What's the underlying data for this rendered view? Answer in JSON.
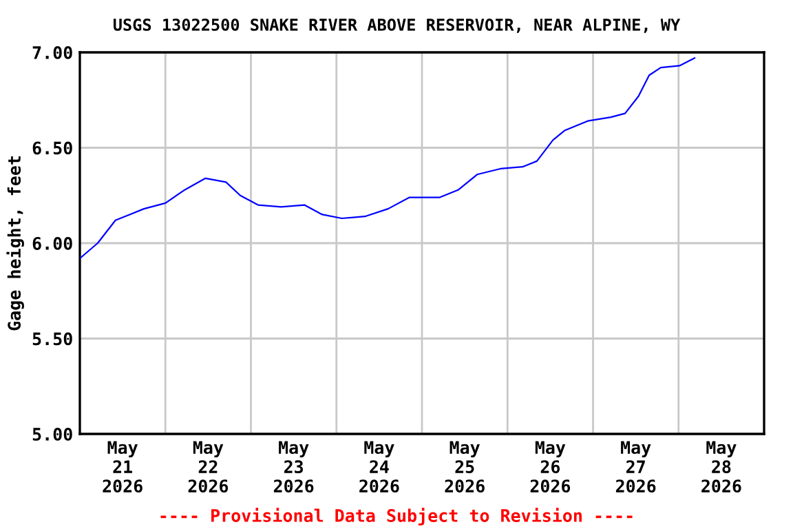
{
  "chart_data": {
    "type": "line",
    "title": "USGS 13022500 SNAKE RIVER ABOVE RESERVOIR, NEAR ALPINE, WY",
    "ylabel": "Gage height, feet",
    "annotations": [
      "---- Provisional Data Subject to Revision ----"
    ],
    "x": [
      "2026-05-21T00:00",
      "2026-05-21T05:00",
      "2026-05-21T10:00",
      "2026-05-21T14:00",
      "2026-05-21T18:00",
      "2026-05-22T00:00",
      "2026-05-22T05:30",
      "2026-05-22T11:15",
      "2026-05-22T17:00",
      "2026-05-22T21:00",
      "2026-05-23T02:00",
      "2026-05-23T08:30",
      "2026-05-23T15:00",
      "2026-05-23T20:00",
      "2026-05-24T01:30",
      "2026-05-24T08:00",
      "2026-05-24T14:30",
      "2026-05-24T20:30",
      "2026-05-25T05:00",
      "2026-05-25T10:15",
      "2026-05-25T15:30",
      "2026-05-25T22:00",
      "2026-05-26T04:15",
      "2026-05-26T08:15",
      "2026-05-26T12:45",
      "2026-05-26T16:00",
      "2026-05-26T22:30",
      "2026-05-27T05:00",
      "2026-05-27T09:00",
      "2026-05-27T12:45",
      "2026-05-27T15:45",
      "2026-05-27T19:00",
      "2026-05-28T00:15",
      "2026-05-28T04:30"
    ],
    "series": [
      {
        "color": "#0000ff",
        "values": [
          5.92,
          6.0,
          6.12,
          6.15,
          6.18,
          6.21,
          6.28,
          6.34,
          6.32,
          6.25,
          6.2,
          6.19,
          6.2,
          6.15,
          6.13,
          6.14,
          6.18,
          6.24,
          6.24,
          6.28,
          6.36,
          6.39,
          6.4,
          6.43,
          6.54,
          6.59,
          6.64,
          6.66,
          6.68,
          6.77,
          6.88,
          6.92,
          6.93,
          6.97
        ]
      }
    ],
    "xlim": [
      "2026-05-21",
      "2026-05-29"
    ],
    "xticks": [
      {
        "value": "2026-05-21T12:00",
        "label": "May\n21\n2026"
      },
      {
        "value": "2026-05-22T00:00",
        "label": null
      },
      {
        "value": "2026-05-22T12:00",
        "label": "May\n22\n2026"
      },
      {
        "value": "2026-05-23T00:00",
        "label": null
      },
      {
        "value": "2026-05-23T12:00",
        "label": "May\n23\n2026"
      },
      {
        "value": "2026-05-24T00:00",
        "label": null
      },
      {
        "value": "2026-05-24T12:00",
        "label": "May\n24\n2026"
      },
      {
        "value": "2026-05-25T00:00",
        "label": null
      },
      {
        "value": "2026-05-25T12:00",
        "label": "May\n25\n2026"
      },
      {
        "value": "2026-05-26T00:00",
        "label": null
      },
      {
        "value": "2026-05-26T12:00",
        "label": "May\n26\n2026"
      },
      {
        "value": "2026-05-27T00:00",
        "label": null
      },
      {
        "value": "2026-05-27T12:00",
        "label": "May\n27\n2026"
      },
      {
        "value": "2026-05-28T00:00",
        "label": null
      },
      {
        "value": "2026-05-28T12:00",
        "label": "May\n28\n2026"
      }
    ],
    "ylim": [
      5.0,
      7.0
    ],
    "yticks": [
      {
        "value": 5.0,
        "label": "5.00"
      },
      {
        "value": 5.5,
        "label": "5.50"
      },
      {
        "value": 6.0,
        "label": "6.00"
      },
      {
        "value": 6.5,
        "label": "6.50"
      },
      {
        "value": 7.0,
        "label": "7.00"
      }
    ],
    "grid": true,
    "legend": false,
    "marker": "none",
    "line_style": "solid"
  }
}
